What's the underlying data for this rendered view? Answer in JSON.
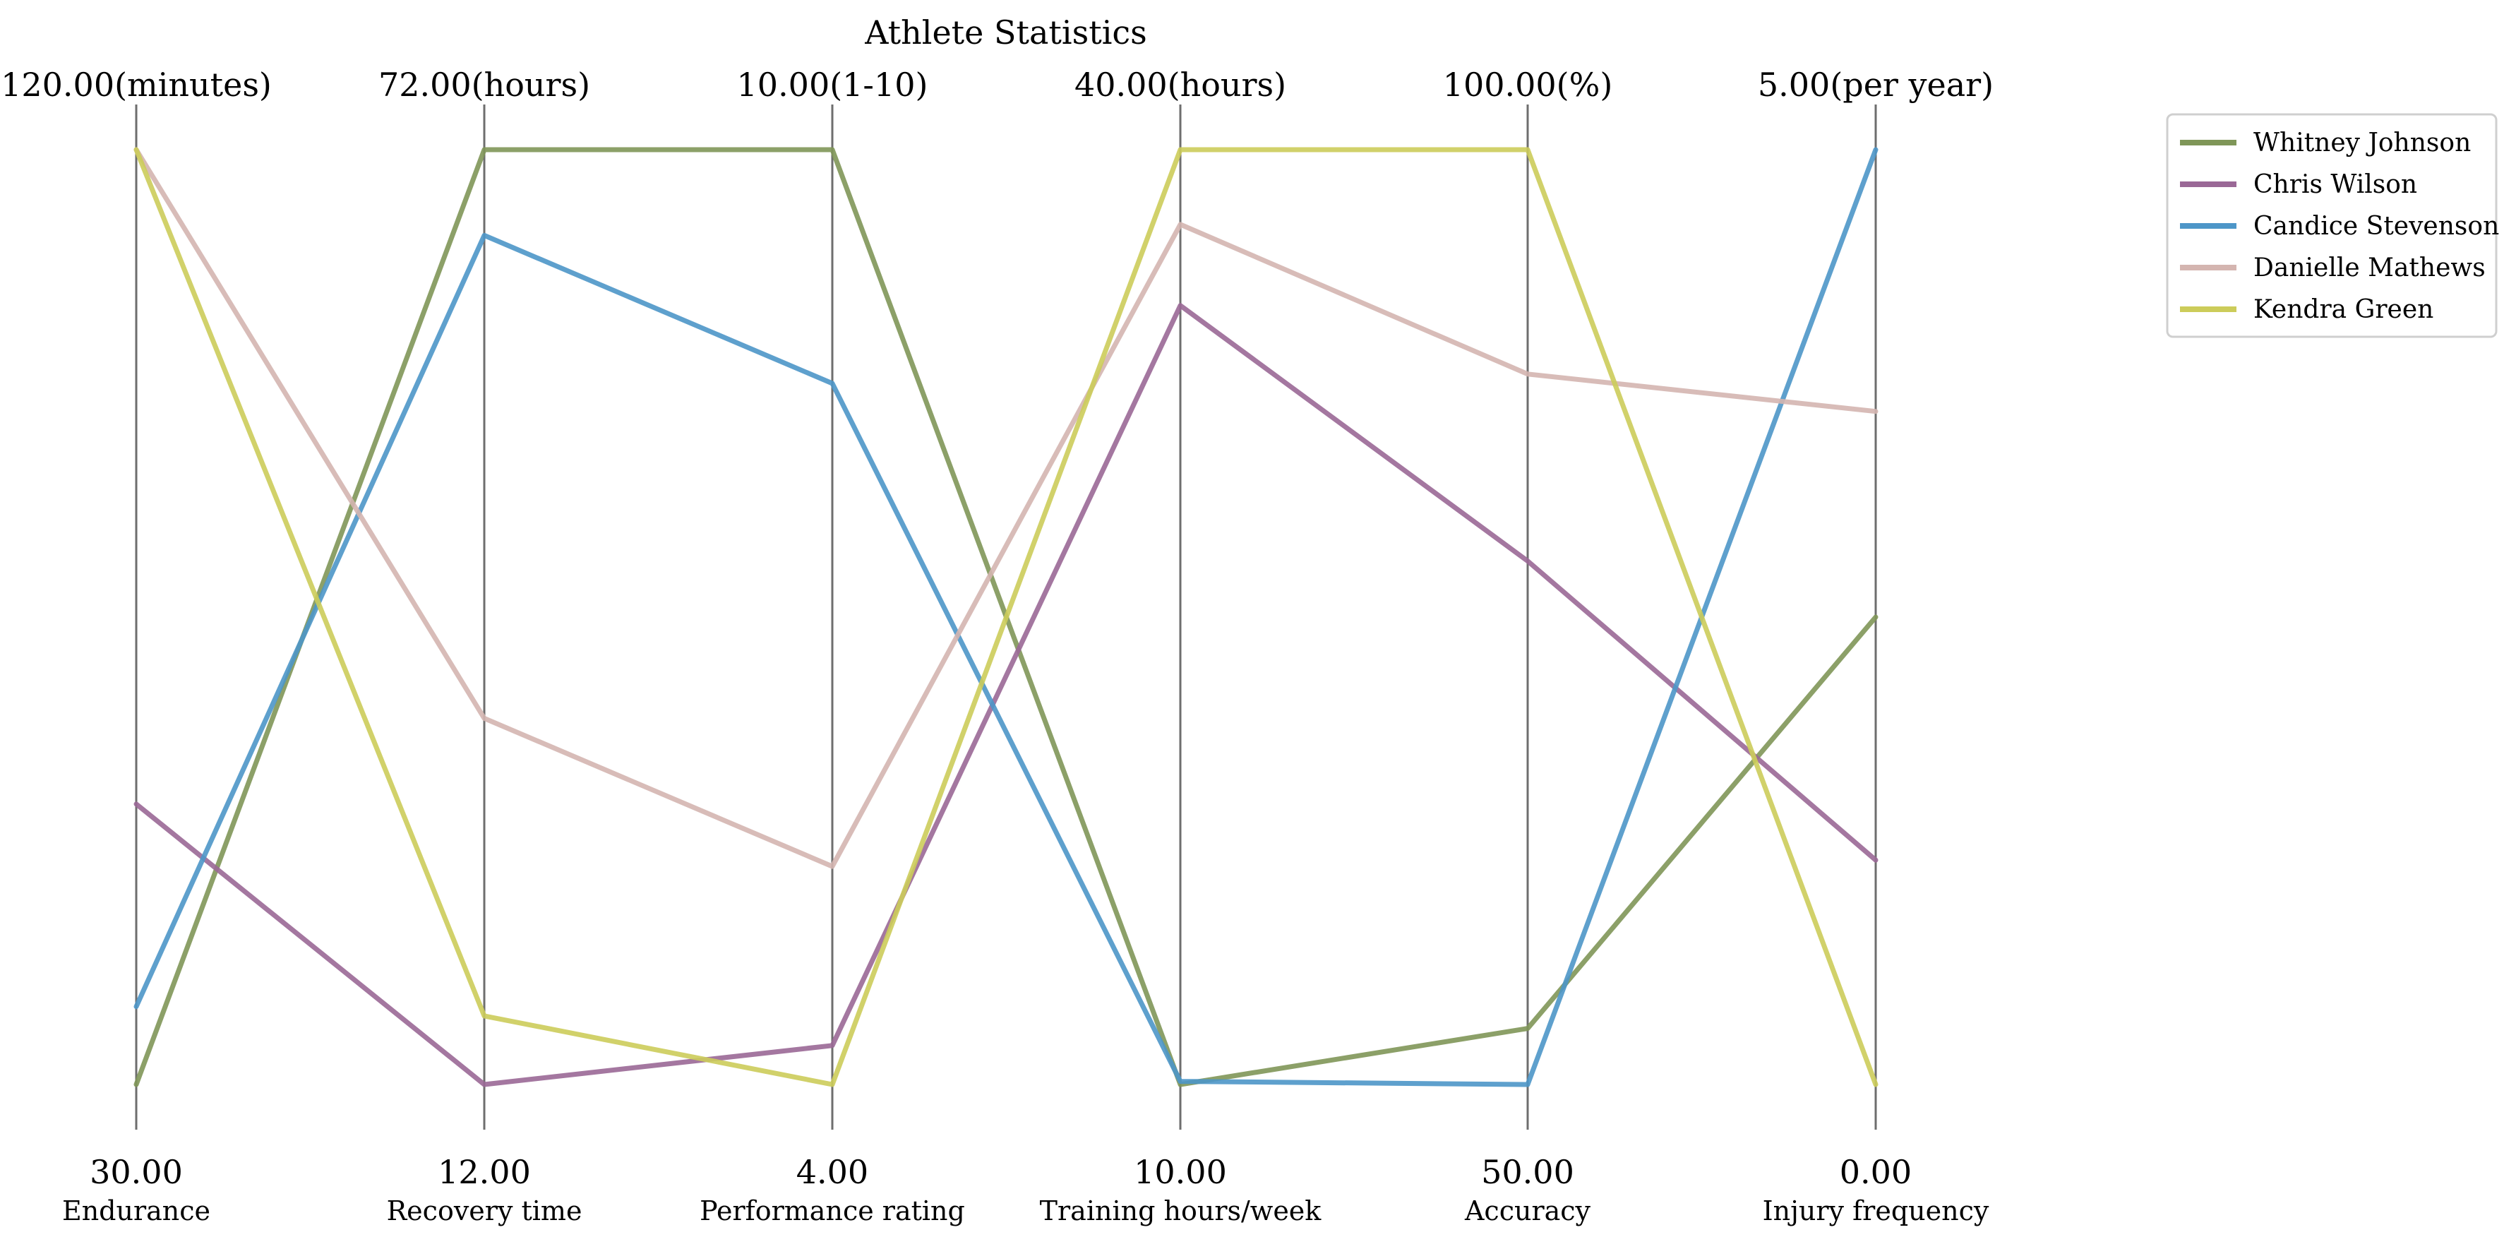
{
  "chart_data": {
    "type": "parallel-coordinates",
    "title": "Athlete Statistics",
    "legend_placement": "top-right",
    "grid": false,
    "axes": [
      {
        "name": "Endurance",
        "min": 30,
        "max": 120,
        "min_label": "30.00",
        "max_label": "120.00(minutes)"
      },
      {
        "name": "Recovery time",
        "min": 12,
        "max": 72,
        "min_label": "12.00",
        "max_label": "72.00(hours)"
      },
      {
        "name": "Performance rating",
        "min": 4,
        "max": 10,
        "min_label": "4.00",
        "max_label": "10.00(1-10)"
      },
      {
        "name": "Training hours/week",
        "min": 10,
        "max": 40,
        "min_label": "10.00",
        "max_label": "40.00(hours)"
      },
      {
        "name": "Accuracy",
        "min": 50,
        "max": 100,
        "min_label": "50.00",
        "max_label": "100.00(%)"
      },
      {
        "name": "Injury frequency",
        "min": 0,
        "max": 5,
        "min_label": "0.00",
        "max_label": "5.00(per year)"
      }
    ],
    "series": [
      {
        "name": "Whitney Johnson",
        "color": "#7f9658",
        "values": [
          30,
          72,
          10,
          10,
          53,
          2.5
        ]
      },
      {
        "name": "Chris Wilson",
        "color": "#9a6896",
        "values": [
          57,
          12,
          4.25,
          35,
          78,
          1.2
        ]
      },
      {
        "name": "Candice Stevenson",
        "color": "#4d96c8",
        "values": [
          37.5,
          66.5,
          8.5,
          10.1,
          50,
          5
        ]
      },
      {
        "name": "Danielle Mathews",
        "color": "#d4b5b0",
        "values": [
          120,
          35.5,
          5.4,
          37.6,
          88,
          3.6
        ]
      },
      {
        "name": "Kendra Green",
        "color": "#cccc5a",
        "values": [
          120,
          16.4,
          4,
          40,
          100,
          0
        ]
      }
    ]
  }
}
